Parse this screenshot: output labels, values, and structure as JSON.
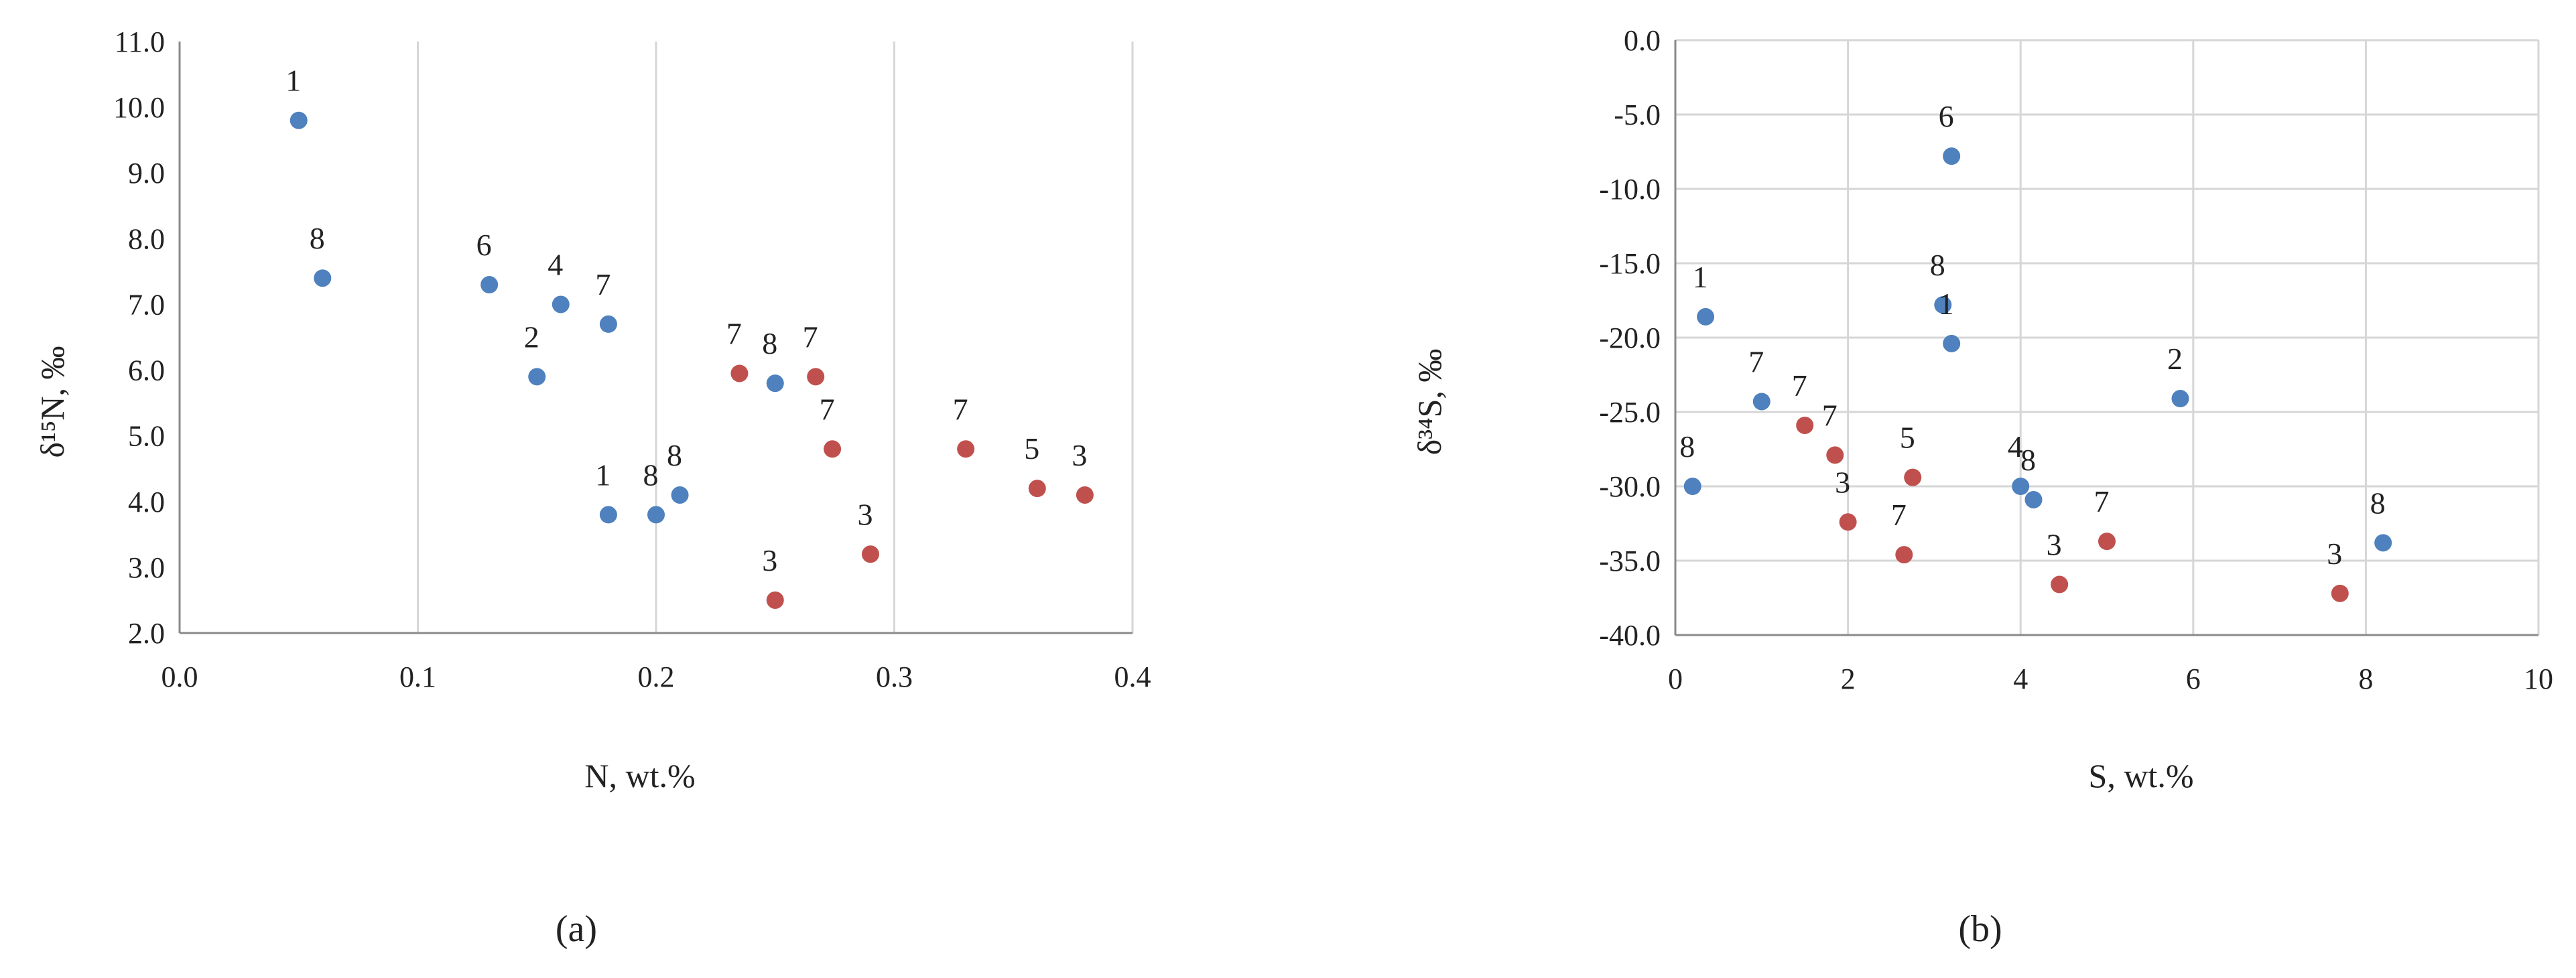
{
  "chart_data": [
    {
      "type": "scatter",
      "caption": "(a)",
      "xlabel": "N, wt.%",
      "ylabel": "δ¹⁵N, ‰",
      "xlim": [
        0.0,
        0.4
      ],
      "ylim": [
        2.0,
        11.0
      ],
      "x_ticks": [
        "0.0",
        "0.1",
        "0.2",
        "0.3",
        "0.4"
      ],
      "y_ticks": [
        "2.0",
        "3.0",
        "4.0",
        "5.0",
        "6.0",
        "7.0",
        "8.0",
        "9.0",
        "10.0",
        "11.0"
      ],
      "grid": "vertical",
      "series": [
        {
          "color": "#4e81bd",
          "points": [
            {
              "x": 0.05,
              "y": 9.8,
              "label": "1"
            },
            {
              "x": 0.06,
              "y": 7.4,
              "label": "8"
            },
            {
              "x": 0.13,
              "y": 7.3,
              "label": "6"
            },
            {
              "x": 0.16,
              "y": 7.0,
              "label": "4"
            },
            {
              "x": 0.18,
              "y": 6.7,
              "label": "7"
            },
            {
              "x": 0.15,
              "y": 5.9,
              "label": "2"
            },
            {
              "x": 0.25,
              "y": 5.8,
              "label": "8"
            },
            {
              "x": 0.18,
              "y": 3.8,
              "label": "1"
            },
            {
              "x": 0.2,
              "y": 3.8,
              "label": "8"
            },
            {
              "x": 0.21,
              "y": 4.1,
              "label": "8"
            }
          ]
        },
        {
          "color": "#c0504d",
          "points": [
            {
              "x": 0.235,
              "y": 5.95,
              "label": "7"
            },
            {
              "x": 0.267,
              "y": 5.9,
              "label": "7"
            },
            {
              "x": 0.274,
              "y": 4.8,
              "label": "7"
            },
            {
              "x": 0.33,
              "y": 4.8,
              "label": "7"
            },
            {
              "x": 0.36,
              "y": 4.2,
              "label": "5"
            },
            {
              "x": 0.38,
              "y": 4.1,
              "label": "3"
            },
            {
              "x": 0.29,
              "y": 3.2,
              "label": "3"
            },
            {
              "x": 0.25,
              "y": 2.5,
              "label": "3"
            }
          ]
        }
      ]
    },
    {
      "type": "scatter",
      "caption": "(b)",
      "xlabel": "S,  wt.%",
      "ylabel": "δ³⁴S, ‰",
      "xlim": [
        0,
        10
      ],
      "ylim": [
        -40.0,
        0.0
      ],
      "x_ticks": [
        "0",
        "2",
        "4",
        "6",
        "8",
        "10"
      ],
      "y_ticks": [
        "-40.0",
        "-35.0",
        "-30.0",
        "-25.0",
        "-20.0",
        "-15.0",
        "-10.0",
        "-5.0",
        "0.0"
      ],
      "grid": "both",
      "series": [
        {
          "color": "#4e81bd",
          "points": [
            {
              "x": 3.2,
              "y": -7.8,
              "label": "6"
            },
            {
              "x": 0.35,
              "y": -18.6,
              "label": "1"
            },
            {
              "x": 3.1,
              "y": -17.8,
              "label": "8"
            },
            {
              "x": 3.2,
              "y": -20.4,
              "label": "1"
            },
            {
              "x": 1.0,
              "y": -24.3,
              "label": "7"
            },
            {
              "x": 5.85,
              "y": -24.1,
              "label": "2"
            },
            {
              "x": 0.2,
              "y": -30.0,
              "label": "8"
            },
            {
              "x": 4.0,
              "y": -30.0,
              "label": "4"
            },
            {
              "x": 4.15,
              "y": -30.9,
              "label": "8"
            },
            {
              "x": 8.2,
              "y": -33.8,
              "label": "8"
            }
          ]
        },
        {
          "color": "#c0504d",
          "points": [
            {
              "x": 1.5,
              "y": -25.9,
              "label": "7"
            },
            {
              "x": 1.85,
              "y": -27.9,
              "label": "7"
            },
            {
              "x": 2.75,
              "y": -29.4,
              "label": "5"
            },
            {
              "x": 2.0,
              "y": -32.4,
              "label": "3"
            },
            {
              "x": 2.65,
              "y": -34.6,
              "label": "7"
            },
            {
              "x": 4.45,
              "y": -36.6,
              "label": "3"
            },
            {
              "x": 5.0,
              "y": -33.7,
              "label": "7"
            },
            {
              "x": 7.7,
              "y": -37.2,
              "label": "3"
            }
          ]
        }
      ]
    }
  ]
}
